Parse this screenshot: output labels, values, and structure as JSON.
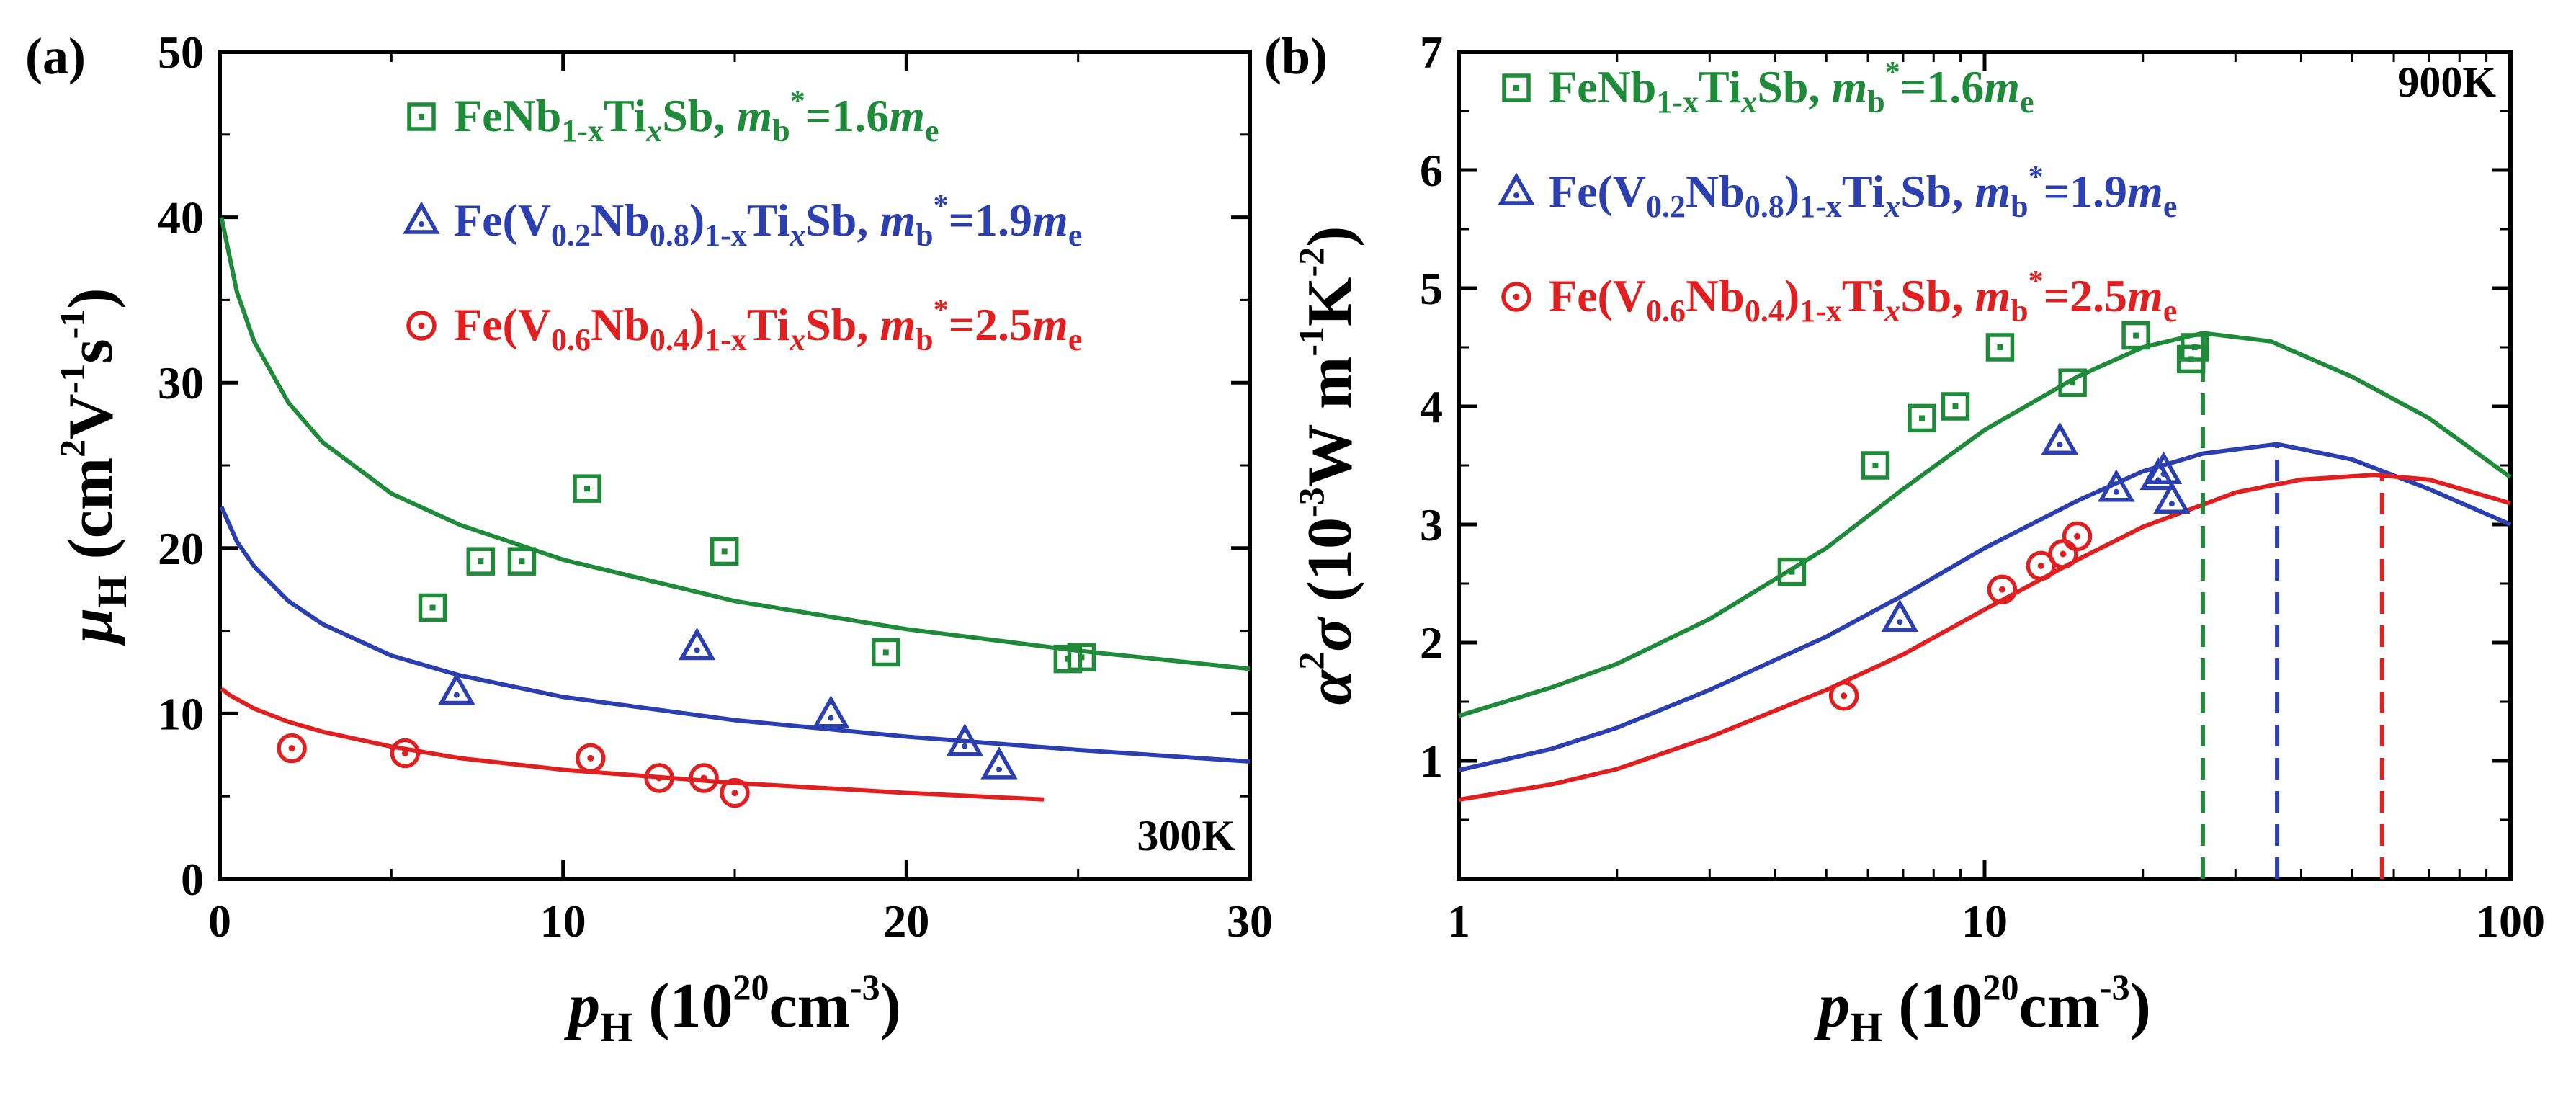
{
  "colors": {
    "green": "#1f8a3a",
    "blue": "#2c3fb0",
    "red": "#e02020"
  },
  "legend": {
    "items": [
      {
        "marker": "square",
        "color_key": "green",
        "parts": [
          {
            "t": "FeNb"
          },
          {
            "t": "1-x",
            "sub": true
          },
          {
            "t": "Ti"
          },
          {
            "t": "x",
            "sub": true,
            "it": true
          },
          {
            "t": "Sb, "
          },
          {
            "t": "m",
            "it": true
          },
          {
            "t": "b",
            "sub": true
          },
          {
            "t": "*",
            "sup": true
          },
          {
            "t": "=1.6"
          },
          {
            "t": "m",
            "it": true
          },
          {
            "t": "e",
            "sub": true
          }
        ]
      },
      {
        "marker": "triangle",
        "color_key": "blue",
        "parts": [
          {
            "t": "Fe(V"
          },
          {
            "t": "0.2",
            "sub": true
          },
          {
            "t": "Nb"
          },
          {
            "t": "0.8",
            "sub": true
          },
          {
            "t": ")"
          },
          {
            "t": "1-x",
            "sub": true
          },
          {
            "t": "Ti"
          },
          {
            "t": "x",
            "sub": true,
            "it": true
          },
          {
            "t": "Sb, "
          },
          {
            "t": "m",
            "it": true
          },
          {
            "t": "b",
            "sub": true
          },
          {
            "t": "*",
            "sup": true
          },
          {
            "t": "=1.9"
          },
          {
            "t": "m",
            "it": true
          },
          {
            "t": "e",
            "sub": true
          }
        ]
      },
      {
        "marker": "circle",
        "color_key": "red",
        "parts": [
          {
            "t": "Fe(V"
          },
          {
            "t": "0.6",
            "sub": true
          },
          {
            "t": "Nb"
          },
          {
            "t": "0.4",
            "sub": true
          },
          {
            "t": ")"
          },
          {
            "t": "1-x",
            "sub": true
          },
          {
            "t": "Ti"
          },
          {
            "t": "x",
            "sub": true,
            "it": true
          },
          {
            "t": "Sb, "
          },
          {
            "t": "m",
            "it": true
          },
          {
            "t": "b",
            "sub": true
          },
          {
            "t": "*",
            "sup": true
          },
          {
            "t": "=2.5"
          },
          {
            "t": "m",
            "it": true
          },
          {
            "t": "e",
            "sub": true
          }
        ]
      }
    ]
  },
  "chart_data": [
    {
      "panel_label": "(a)",
      "type": "scatter",
      "temperature_label": "300K",
      "xscale": "linear",
      "xlim": [
        0,
        30
      ],
      "ylim": [
        0,
        50
      ],
      "xticks": [
        0,
        10,
        20,
        30
      ],
      "xtick_labels": [
        "0",
        "10",
        "20",
        "30"
      ],
      "yticks": [
        0,
        10,
        20,
        30,
        40,
        50
      ],
      "ytick_labels": [
        "0",
        "10",
        "20",
        "30",
        "40",
        "50"
      ],
      "xlabel": {
        "main": "p",
        "sub": "H",
        "rest": " (10",
        "sup": "20",
        "rest2": "cm",
        "sup2": "-3",
        "rest3": ")"
      },
      "ylabel": {
        "main": "μ",
        "sub": "H",
        "rest": " (cm",
        "sup": "2",
        "rest2": "V",
        "sup2": "-1",
        "rest3": "s",
        "sup3": "-1",
        "rest4": ")"
      },
      "series": [
        {
          "name": "FeNb1-xTixSb, mb*=1.6me",
          "marker": "square",
          "color_key": "green",
          "x": [
            6.2,
            7.6,
            8.8,
            10.7,
            14.7,
            19.4,
            24.7,
            25.1
          ],
          "y": [
            16.4,
            19.2,
            19.2,
            23.6,
            19.8,
            13.7,
            13.3,
            13.4
          ]
        },
        {
          "name": "Fe(V0.2Nb0.8)1-xTixSb, mb*=1.9me",
          "marker": "triangle",
          "color_key": "blue",
          "x": [
            6.9,
            13.9,
            17.8,
            21.7,
            22.7
          ],
          "y": [
            11.3,
            14.0,
            9.9,
            8.2,
            6.8
          ]
        },
        {
          "name": "Fe(V0.6Nb0.4)1-xTixSb, mb*=2.5me",
          "marker": "circle",
          "color_key": "red",
          "x": [
            2.1,
            5.4,
            10.8,
            12.8,
            14.1,
            15.0
          ],
          "y": [
            7.9,
            7.6,
            7.3,
            6.1,
            6.1,
            5.2
          ]
        }
      ],
      "fits": [
        {
          "color_key": "green",
          "x": [
            0.05,
            0.2,
            0.5,
            1,
            2,
            3,
            5,
            7,
            10,
            15,
            20,
            25,
            30
          ],
          "y": [
            40,
            38.5,
            35.5,
            32.5,
            28.8,
            26.4,
            23.3,
            21.4,
            19.3,
            16.8,
            15.1,
            13.8,
            12.7
          ]
        },
        {
          "color_key": "blue",
          "x": [
            0.05,
            0.2,
            0.5,
            1,
            2,
            3,
            5,
            7,
            10,
            15,
            20,
            25,
            30
          ],
          "y": [
            22.5,
            21.8,
            20.4,
            18.9,
            16.8,
            15.4,
            13.5,
            12.3,
            11.0,
            9.6,
            8.6,
            7.8,
            7.1
          ]
        },
        {
          "color_key": "red",
          "x": [
            0.05,
            0.3,
            1,
            2,
            3,
            5,
            7,
            10,
            15,
            20,
            24
          ],
          "y": [
            11.5,
            11.1,
            10.3,
            9.5,
            8.9,
            8.0,
            7.3,
            6.6,
            5.8,
            5.2,
            4.8
          ]
        }
      ]
    },
    {
      "panel_label": "(b)",
      "type": "scatter",
      "temperature_label": "900K",
      "xscale": "log",
      "xlim": [
        1,
        100
      ],
      "ylim": [
        0,
        7
      ],
      "xticks": [
        1,
        10,
        100
      ],
      "xtick_labels": [
        "1",
        "10",
        "100"
      ],
      "yticks": [
        1,
        2,
        3,
        4,
        5,
        6,
        7
      ],
      "ytick_labels": [
        "1",
        "2",
        "3",
        "4",
        "5",
        "6",
        "7"
      ],
      "xlabel": {
        "main": "p",
        "sub": "H",
        "rest": " (10",
        "sup": "20",
        "rest2": "cm",
        "sup2": "-3",
        "rest3": ")"
      },
      "ylabel": {
        "main": "α",
        "sup0": "2",
        "main2": "σ",
        "rest": " (10",
        "sup": "-3",
        "rest2": "W m",
        "sup2": "-1",
        "rest3": "K",
        "sup3": "-2",
        "rest4": ")"
      },
      "series": [
        {
          "name": "FeNb1-xTixSb, mb*=1.6me",
          "marker": "square",
          "color_key": "green",
          "x": [
            4.3,
            6.2,
            7.6,
            8.8,
            10.7,
            14.7,
            19.4,
            24.7,
            25.1
          ],
          "y": [
            2.6,
            3.5,
            3.9,
            4.0,
            4.5,
            4.2,
            4.6,
            4.4,
            4.5
          ]
        },
        {
          "name": "Fe(V0.2Nb0.8)1-xTixSb, mb*=1.9me",
          "marker": "triangle",
          "color_key": "blue",
          "x": [
            6.9,
            13.9,
            17.8,
            21.4,
            21.9,
            22.7
          ],
          "y": [
            2.2,
            3.7,
            3.3,
            3.4,
            3.45,
            3.2
          ]
        },
        {
          "name": "Fe(V0.6Nb0.4)1-xTixSb, mb*=2.5me",
          "marker": "circle",
          "color_key": "red",
          "x": [
            5.4,
            10.8,
            12.8,
            14.1,
            15.0
          ],
          "y": [
            1.55,
            2.45,
            2.65,
            2.75,
            2.9
          ]
        }
      ],
      "fits": [
        {
          "color_key": "green",
          "x": [
            1,
            1.5,
            2,
            3,
            5,
            7,
            10,
            15,
            20,
            26,
            35,
            50,
            70,
            100
          ],
          "y": [
            1.38,
            1.62,
            1.82,
            2.2,
            2.8,
            3.3,
            3.8,
            4.25,
            4.5,
            4.62,
            4.55,
            4.25,
            3.9,
            3.4
          ]
        },
        {
          "color_key": "blue",
          "x": [
            1,
            1.5,
            2,
            3,
            5,
            7,
            10,
            15,
            20,
            26,
            36,
            50,
            70,
            100
          ],
          "y": [
            0.92,
            1.1,
            1.28,
            1.6,
            2.05,
            2.4,
            2.8,
            3.2,
            3.45,
            3.6,
            3.68,
            3.55,
            3.3,
            3.0
          ]
        },
        {
          "color_key": "red",
          "x": [
            1,
            1.5,
            2,
            3,
            5,
            7,
            10,
            15,
            20,
            30,
            40,
            55,
            70,
            100
          ],
          "y": [
            0.67,
            0.8,
            0.93,
            1.2,
            1.6,
            1.9,
            2.28,
            2.7,
            2.98,
            3.27,
            3.38,
            3.42,
            3.38,
            3.18
          ]
        }
      ],
      "optimal_markers": [
        {
          "color_key": "green",
          "x": 26,
          "y_top": 4.62
        },
        {
          "color_key": "blue",
          "x": 36,
          "y_top": 3.68
        },
        {
          "color_key": "red",
          "x": 57,
          "y_top": 3.42
        }
      ]
    }
  ]
}
